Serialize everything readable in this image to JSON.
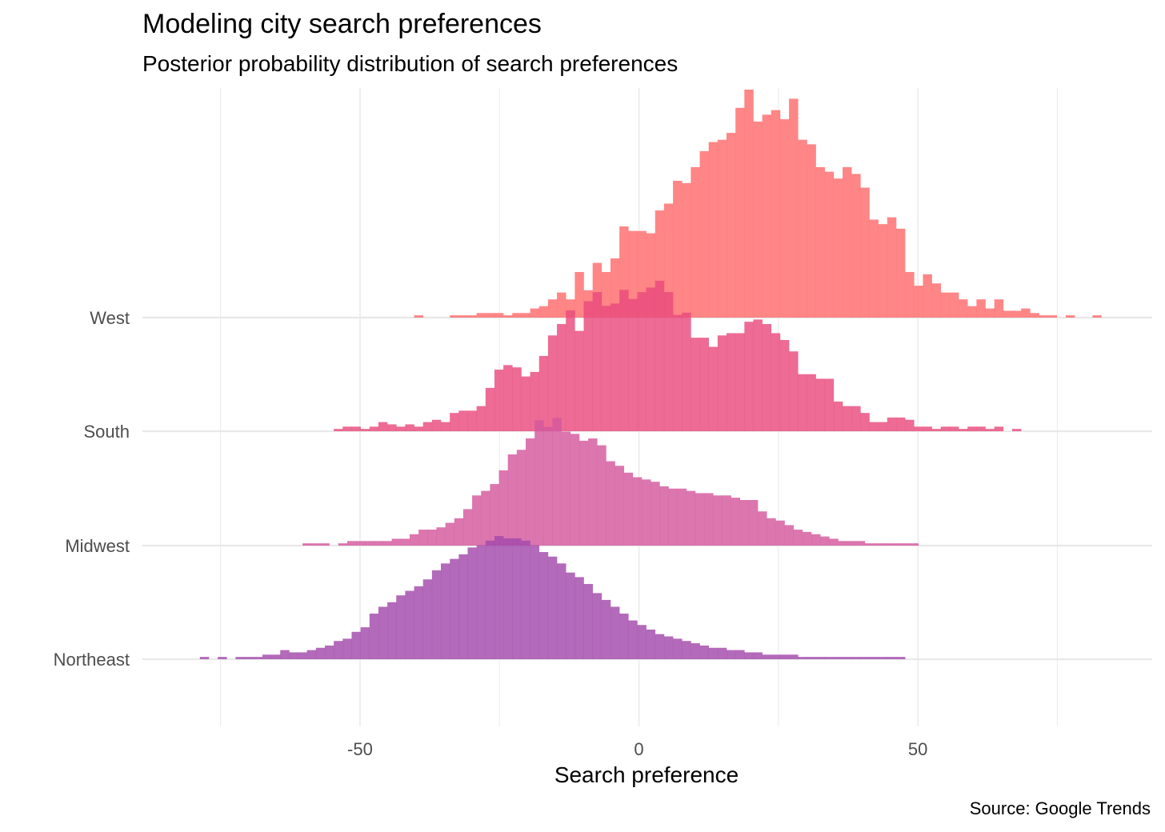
{
  "title": "Modeling city search preferences",
  "subtitle": "Posterior probability distribution of search preferences",
  "caption": "Source: Google Trends",
  "chart_data": {
    "type": "histogram (ridgeline)",
    "title": "Modeling city search preferences",
    "subtitle": "Posterior probability distribution of search preferences",
    "xlabel": "Search preference",
    "ylabel": "",
    "caption": "Source: Google Trends",
    "xlim": [
      -89,
      92
    ],
    "xticks": [
      -50,
      0,
      50
    ],
    "xtick_labels": [
      "-50",
      "0",
      "50"
    ],
    "grid": "on (major and minor, light gray)",
    "legend": "none",
    "categories": [
      "West",
      "South",
      "Midwest",
      "Northeast"
    ],
    "bin_width": 1.6,
    "series": [
      {
        "name": "West",
        "color": "#ff6b6b",
        "bins": [
          [
            -39.5,
            0.01
          ],
          [
            -33.1,
            0.01
          ],
          [
            -31.5,
            0.01
          ],
          [
            -29.9,
            0.01
          ],
          [
            -28.3,
            0.02
          ],
          [
            -26.7,
            0.02
          ],
          [
            -25.1,
            0.02
          ],
          [
            -23.5,
            0.01
          ],
          [
            -21.9,
            0.02
          ],
          [
            -20.3,
            0.02
          ],
          [
            -18.7,
            0.04
          ],
          [
            -17.1,
            0.05
          ],
          [
            -15.5,
            0.08
          ],
          [
            -13.9,
            0.11
          ],
          [
            -12.3,
            0.08
          ],
          [
            -10.7,
            0.2
          ],
          [
            -9.1,
            0.12
          ],
          [
            -7.5,
            0.24
          ],
          [
            -5.9,
            0.2
          ],
          [
            -4.3,
            0.26
          ],
          [
            -2.7,
            0.4
          ],
          [
            -1.1,
            0.38
          ],
          [
            0.5,
            0.38
          ],
          [
            2.1,
            0.37
          ],
          [
            3.7,
            0.47
          ],
          [
            5.3,
            0.5
          ],
          [
            6.9,
            0.6
          ],
          [
            8.5,
            0.59
          ],
          [
            10.1,
            0.66
          ],
          [
            11.7,
            0.73
          ],
          [
            13.3,
            0.77
          ],
          [
            14.9,
            0.78
          ],
          [
            16.5,
            0.81
          ],
          [
            18.1,
            0.92
          ],
          [
            19.7,
            1.0
          ],
          [
            21.3,
            0.86
          ],
          [
            22.9,
            0.89
          ],
          [
            24.5,
            0.91
          ],
          [
            26.1,
            0.87
          ],
          [
            27.7,
            0.96
          ],
          [
            29.3,
            0.78
          ],
          [
            30.9,
            0.76
          ],
          [
            32.5,
            0.66
          ],
          [
            34.1,
            0.64
          ],
          [
            35.7,
            0.61
          ],
          [
            37.3,
            0.66
          ],
          [
            38.9,
            0.63
          ],
          [
            40.5,
            0.57
          ],
          [
            42.1,
            0.43
          ],
          [
            43.7,
            0.41
          ],
          [
            45.3,
            0.44
          ],
          [
            46.9,
            0.39
          ],
          [
            48.5,
            0.2
          ],
          [
            50.1,
            0.14
          ],
          [
            51.7,
            0.19
          ],
          [
            53.3,
            0.15
          ],
          [
            54.9,
            0.11
          ],
          [
            56.5,
            0.11
          ],
          [
            58.1,
            0.08
          ],
          [
            59.7,
            0.05
          ],
          [
            61.3,
            0.08
          ],
          [
            62.9,
            0.04
          ],
          [
            64.5,
            0.08
          ],
          [
            66.1,
            0.03
          ],
          [
            67.7,
            0.03
          ],
          [
            69.3,
            0.04
          ],
          [
            70.9,
            0.02
          ],
          [
            72.5,
            0.01
          ],
          [
            74.1,
            0.01
          ],
          [
            77.3,
            0.01
          ],
          [
            82.1,
            0.01
          ]
        ]
      },
      {
        "name": "South",
        "color": "#e94a7e",
        "bins": [
          [
            -53.9,
            0.01
          ],
          [
            -52.3,
            0.02
          ],
          [
            -50.7,
            0.02
          ],
          [
            -49.1,
            0.01
          ],
          [
            -47.5,
            0.02
          ],
          [
            -45.9,
            0.04
          ],
          [
            -44.3,
            0.03
          ],
          [
            -42.7,
            0.02
          ],
          [
            -41.1,
            0.03
          ],
          [
            -39.5,
            0.02
          ],
          [
            -37.9,
            0.04
          ],
          [
            -36.3,
            0.05
          ],
          [
            -34.7,
            0.04
          ],
          [
            -33.1,
            0.08
          ],
          [
            -31.5,
            0.09
          ],
          [
            -29.9,
            0.09
          ],
          [
            -28.3,
            0.11
          ],
          [
            -26.7,
            0.19
          ],
          [
            -25.1,
            0.27
          ],
          [
            -23.5,
            0.29
          ],
          [
            -21.9,
            0.28
          ],
          [
            -20.3,
            0.24
          ],
          [
            -18.7,
            0.26
          ],
          [
            -17.1,
            0.33
          ],
          [
            -15.5,
            0.42
          ],
          [
            -13.9,
            0.47
          ],
          [
            -12.3,
            0.53
          ],
          [
            -10.7,
            0.44
          ],
          [
            -9.1,
            0.57
          ],
          [
            -7.5,
            0.61
          ],
          [
            -5.9,
            0.55
          ],
          [
            -4.3,
            0.56
          ],
          [
            -2.7,
            0.62
          ],
          [
            -1.1,
            0.58
          ],
          [
            0.5,
            0.61
          ],
          [
            2.1,
            0.63
          ],
          [
            3.7,
            0.66
          ],
          [
            5.3,
            0.61
          ],
          [
            6.9,
            0.51
          ],
          [
            8.5,
            0.52
          ],
          [
            10.1,
            0.41
          ],
          [
            11.7,
            0.41
          ],
          [
            13.3,
            0.37
          ],
          [
            14.9,
            0.42
          ],
          [
            16.5,
            0.43
          ],
          [
            18.1,
            0.43
          ],
          [
            19.7,
            0.48
          ],
          [
            21.3,
            0.49
          ],
          [
            22.9,
            0.47
          ],
          [
            24.5,
            0.43
          ],
          [
            26.1,
            0.4
          ],
          [
            27.7,
            0.35
          ],
          [
            29.3,
            0.25
          ],
          [
            30.9,
            0.25
          ],
          [
            32.5,
            0.23
          ],
          [
            34.1,
            0.23
          ],
          [
            35.7,
            0.13
          ],
          [
            37.3,
            0.11
          ],
          [
            38.9,
            0.11
          ],
          [
            40.5,
            0.08
          ],
          [
            42.1,
            0.04
          ],
          [
            43.7,
            0.04
          ],
          [
            45.3,
            0.06
          ],
          [
            46.9,
            0.06
          ],
          [
            48.5,
            0.05
          ],
          [
            50.1,
            0.02
          ],
          [
            51.7,
            0.02
          ],
          [
            53.3,
            0.01
          ],
          [
            54.9,
            0.02
          ],
          [
            56.5,
            0.02
          ],
          [
            58.1,
            0.01
          ],
          [
            59.7,
            0.02
          ],
          [
            61.3,
            0.02
          ],
          [
            62.9,
            0.01
          ],
          [
            64.5,
            0.02
          ],
          [
            67.7,
            0.01
          ]
        ]
      },
      {
        "name": "Midwest",
        "color": "#d4589d",
        "bins": [
          [
            -59.5,
            0.01
          ],
          [
            -57.9,
            0.01
          ],
          [
            -56.3,
            0.01
          ],
          [
            -53.1,
            0.01
          ],
          [
            -51.5,
            0.02
          ],
          [
            -49.9,
            0.02
          ],
          [
            -48.3,
            0.02
          ],
          [
            -46.7,
            0.02
          ],
          [
            -45.1,
            0.02
          ],
          [
            -43.5,
            0.03
          ],
          [
            -41.9,
            0.03
          ],
          [
            -40.3,
            0.05
          ],
          [
            -38.7,
            0.07
          ],
          [
            -37.1,
            0.07
          ],
          [
            -35.5,
            0.08
          ],
          [
            -33.9,
            0.1
          ],
          [
            -32.3,
            0.12
          ],
          [
            -30.7,
            0.16
          ],
          [
            -29.1,
            0.22
          ],
          [
            -27.5,
            0.24
          ],
          [
            -25.9,
            0.27
          ],
          [
            -24.3,
            0.33
          ],
          [
            -22.7,
            0.4
          ],
          [
            -21.1,
            0.42
          ],
          [
            -19.5,
            0.47
          ],
          [
            -17.9,
            0.55
          ],
          [
            -16.3,
            0.52
          ],
          [
            -14.7,
            0.56
          ],
          [
            -13.1,
            0.5
          ],
          [
            -11.5,
            0.49
          ],
          [
            -9.9,
            0.46
          ],
          [
            -8.3,
            0.47
          ],
          [
            -6.7,
            0.44
          ],
          [
            -5.1,
            0.37
          ],
          [
            -3.5,
            0.35
          ],
          [
            -1.9,
            0.32
          ],
          [
            -0.3,
            0.3
          ],
          [
            1.3,
            0.29
          ],
          [
            2.9,
            0.28
          ],
          [
            4.5,
            0.26
          ],
          [
            6.1,
            0.25
          ],
          [
            7.7,
            0.25
          ],
          [
            9.3,
            0.24
          ],
          [
            10.9,
            0.23
          ],
          [
            12.5,
            0.23
          ],
          [
            14.1,
            0.22
          ],
          [
            15.7,
            0.22
          ],
          [
            17.3,
            0.21
          ],
          [
            18.9,
            0.2
          ],
          [
            20.5,
            0.2
          ],
          [
            22.1,
            0.15
          ],
          [
            23.7,
            0.12
          ],
          [
            25.3,
            0.11
          ],
          [
            26.9,
            0.09
          ],
          [
            28.5,
            0.07
          ],
          [
            30.1,
            0.06
          ],
          [
            31.7,
            0.05
          ],
          [
            33.3,
            0.04
          ],
          [
            34.9,
            0.03
          ],
          [
            36.5,
            0.02
          ],
          [
            38.1,
            0.02
          ],
          [
            39.7,
            0.02
          ],
          [
            41.3,
            0.01
          ],
          [
            42.9,
            0.01
          ],
          [
            44.5,
            0.01
          ],
          [
            46.1,
            0.01
          ],
          [
            47.7,
            0.01
          ],
          [
            49.3,
            0.01
          ]
        ]
      },
      {
        "name": "Northeast",
        "color": "#a249ab",
        "bins": [
          [
            -77.9,
            0.01
          ],
          [
            -74.7,
            0.01
          ],
          [
            -71.5,
            0.01
          ],
          [
            -69.9,
            0.01
          ],
          [
            -68.3,
            0.01
          ],
          [
            -66.7,
            0.02
          ],
          [
            -65.1,
            0.02
          ],
          [
            -63.5,
            0.04
          ],
          [
            -61.9,
            0.03
          ],
          [
            -60.3,
            0.03
          ],
          [
            -58.7,
            0.04
          ],
          [
            -57.1,
            0.05
          ],
          [
            -55.5,
            0.06
          ],
          [
            -53.9,
            0.08
          ],
          [
            -52.3,
            0.09
          ],
          [
            -50.7,
            0.12
          ],
          [
            -49.1,
            0.14
          ],
          [
            -47.5,
            0.2
          ],
          [
            -45.9,
            0.23
          ],
          [
            -44.3,
            0.25
          ],
          [
            -42.7,
            0.28
          ],
          [
            -41.1,
            0.3
          ],
          [
            -39.5,
            0.32
          ],
          [
            -37.9,
            0.35
          ],
          [
            -36.3,
            0.39
          ],
          [
            -34.7,
            0.42
          ],
          [
            -33.1,
            0.44
          ],
          [
            -31.5,
            0.46
          ],
          [
            -29.9,
            0.49
          ],
          [
            -28.3,
            0.5
          ],
          [
            -26.7,
            0.52
          ],
          [
            -25.1,
            0.54
          ],
          [
            -23.5,
            0.53
          ],
          [
            -21.9,
            0.53
          ],
          [
            -20.3,
            0.52
          ],
          [
            -18.7,
            0.5
          ],
          [
            -17.1,
            0.47
          ],
          [
            -15.5,
            0.45
          ],
          [
            -13.9,
            0.42
          ],
          [
            -12.3,
            0.38
          ],
          [
            -10.7,
            0.36
          ],
          [
            -9.1,
            0.33
          ],
          [
            -7.5,
            0.29
          ],
          [
            -5.9,
            0.26
          ],
          [
            -4.3,
            0.23
          ],
          [
            -2.7,
            0.2
          ],
          [
            -1.1,
            0.17
          ],
          [
            0.5,
            0.15
          ],
          [
            2.1,
            0.13
          ],
          [
            3.7,
            0.11
          ],
          [
            5.3,
            0.1
          ],
          [
            6.9,
            0.09
          ],
          [
            8.5,
            0.08
          ],
          [
            10.1,
            0.07
          ],
          [
            11.7,
            0.06
          ],
          [
            13.3,
            0.05
          ],
          [
            14.9,
            0.05
          ],
          [
            16.5,
            0.04
          ],
          [
            18.1,
            0.04
          ],
          [
            19.7,
            0.03
          ],
          [
            21.3,
            0.03
          ],
          [
            22.9,
            0.02
          ],
          [
            24.5,
            0.02
          ],
          [
            26.1,
            0.02
          ],
          [
            27.7,
            0.02
          ],
          [
            29.3,
            0.01
          ],
          [
            30.9,
            0.01
          ],
          [
            32.5,
            0.01
          ],
          [
            34.1,
            0.01
          ],
          [
            35.7,
            0.01
          ],
          [
            37.3,
            0.01
          ],
          [
            38.9,
            0.01
          ],
          [
            40.5,
            0.01
          ],
          [
            42.1,
            0.01
          ],
          [
            43.7,
            0.01
          ],
          [
            45.3,
            0.01
          ],
          [
            46.9,
            0.01
          ]
        ]
      }
    ]
  }
}
